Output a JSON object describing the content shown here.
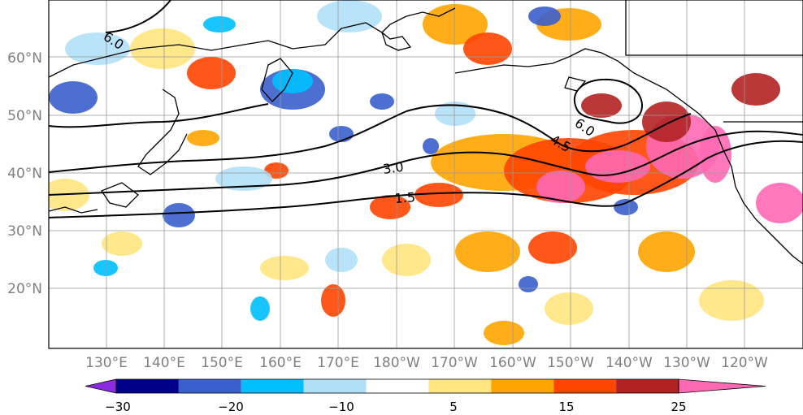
{
  "map": {
    "latitude_labels": [
      "60°N",
      "50°N",
      "40°N",
      "30°N",
      "20°N"
    ],
    "longitude_labels": [
      "130°E",
      "140°E",
      "150°E",
      "160°E",
      "170°E",
      "180°W",
      "170°W",
      "160°W",
      "150°W",
      "140°W",
      "130°W",
      "120°W"
    ],
    "contour_labels": [
      "6.0",
      "6.0",
      "4.5",
      "3.0",
      "1.5"
    ]
  },
  "colorbar": {
    "colors": [
      "#8a2be2",
      "#00008b",
      "#3a5fcd",
      "#00bfff",
      "#b0e0f7",
      "#ffffff",
      "#ffe680",
      "#ffa500",
      "#ff4500",
      "#b22222",
      "#ff69b4"
    ],
    "tick_labels": [
      "−30",
      "−20",
      "−10",
      "5",
      "15",
      "25"
    ]
  },
  "anomaly_palette": {
    "neg_strong": "#3a5fcd",
    "neg_mid": "#00bfff",
    "neg_light": "#b0e0f7",
    "pos_light": "#ffe680",
    "pos_mid": "#ffa500",
    "pos_strong": "#ff4500",
    "pos_darker": "#b22222",
    "pos_max": "#ff69b4"
  }
}
